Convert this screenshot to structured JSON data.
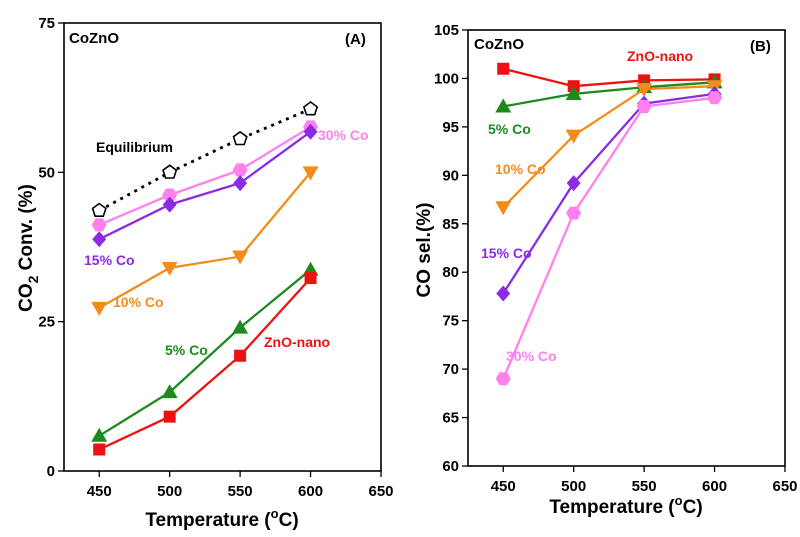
{
  "chart_data": [
    {
      "type": "line",
      "panel": "(A)",
      "sample": "CoZnO",
      "title": "",
      "xlabel_main": "Temperature (",
      "xlabel_sup": "o",
      "xlabel_end": "C)",
      "ylabel_main": "CO",
      "ylabel_sub": "2",
      "ylabel_end": " Conv. (%)",
      "xlim": [
        425,
        650
      ],
      "ylim": [
        0,
        75
      ],
      "xticks": [
        450,
        500,
        550,
        600,
        650
      ],
      "yticks": [
        0,
        25,
        50,
        75
      ],
      "grid": false,
      "series": [
        {
          "name": "Equilibrium",
          "color": "#000000",
          "marker": "pentagon-open",
          "dashed": true,
          "x": [
            450,
            500,
            550,
            600
          ],
          "y": [
            43.6,
            50.0,
            55.6,
            60.6
          ]
        },
        {
          "name": "30% Co",
          "color": "#ff80ee",
          "marker": "hexagon",
          "x": [
            450,
            500,
            550,
            600
          ],
          "y": [
            41.2,
            46.2,
            50.4,
            57.6
          ]
        },
        {
          "name": "15% Co",
          "color": "#8b2be2",
          "marker": "diamond",
          "x": [
            450,
            500,
            550,
            600
          ],
          "y": [
            38.8,
            44.6,
            48.2,
            56.8
          ]
        },
        {
          "name": "10% Co",
          "color": "#f48c1c",
          "marker": "triangle-down",
          "x": [
            450,
            500,
            550,
            600
          ],
          "y": [
            27.3,
            34.0,
            35.9,
            50.0
          ]
        },
        {
          "name": "5% Co",
          "color": "#1e8a1e",
          "marker": "triangle-up",
          "x": [
            450,
            500,
            550,
            600
          ],
          "y": [
            5.9,
            13.2,
            24.0,
            33.7
          ]
        },
        {
          "name": "ZnO-nano",
          "color": "#ee1111",
          "marker": "square",
          "x": [
            450,
            500,
            550,
            600
          ],
          "y": [
            3.6,
            9.1,
            19.3,
            32.3
          ]
        }
      ]
    },
    {
      "type": "line",
      "panel": "(B)",
      "sample": "CoZnO",
      "title": "",
      "xlabel_main": "Temperature (",
      "xlabel_sup": "o",
      "xlabel_end": "C)",
      "ylabel": "CO sel.(%)",
      "xlim": [
        425,
        650
      ],
      "ylim": [
        60,
        105
      ],
      "xticks": [
        450,
        500,
        550,
        600,
        650
      ],
      "yticks": [
        60,
        65,
        70,
        75,
        80,
        85,
        90,
        95,
        100,
        105
      ],
      "grid": false,
      "series": [
        {
          "name": "ZnO-nano",
          "color": "#ee1111",
          "marker": "square",
          "x": [
            450,
            500,
            550,
            600
          ],
          "y": [
            101.0,
            99.2,
            99.8,
            99.9
          ]
        },
        {
          "name": "5% Co",
          "color": "#1e8a1e",
          "marker": "triangle-up",
          "x": [
            450,
            500,
            550,
            600
          ],
          "y": [
            97.1,
            98.4,
            99.1,
            99.6
          ]
        },
        {
          "name": "10% Co",
          "color": "#f48c1c",
          "marker": "triangle-down",
          "x": [
            450,
            500,
            550,
            600
          ],
          "y": [
            86.7,
            94.1,
            98.9,
            99.2
          ]
        },
        {
          "name": "15% Co",
          "color": "#8b2be2",
          "marker": "diamond",
          "x": [
            450,
            500,
            550,
            600
          ],
          "y": [
            77.8,
            89.2,
            97.4,
            98.4
          ]
        },
        {
          "name": "30% Co",
          "color": "#ff80ee",
          "marker": "hexagon",
          "x": [
            450,
            500,
            550,
            600
          ],
          "y": [
            69.0,
            86.1,
            97.1,
            98.0
          ]
        }
      ]
    }
  ]
}
